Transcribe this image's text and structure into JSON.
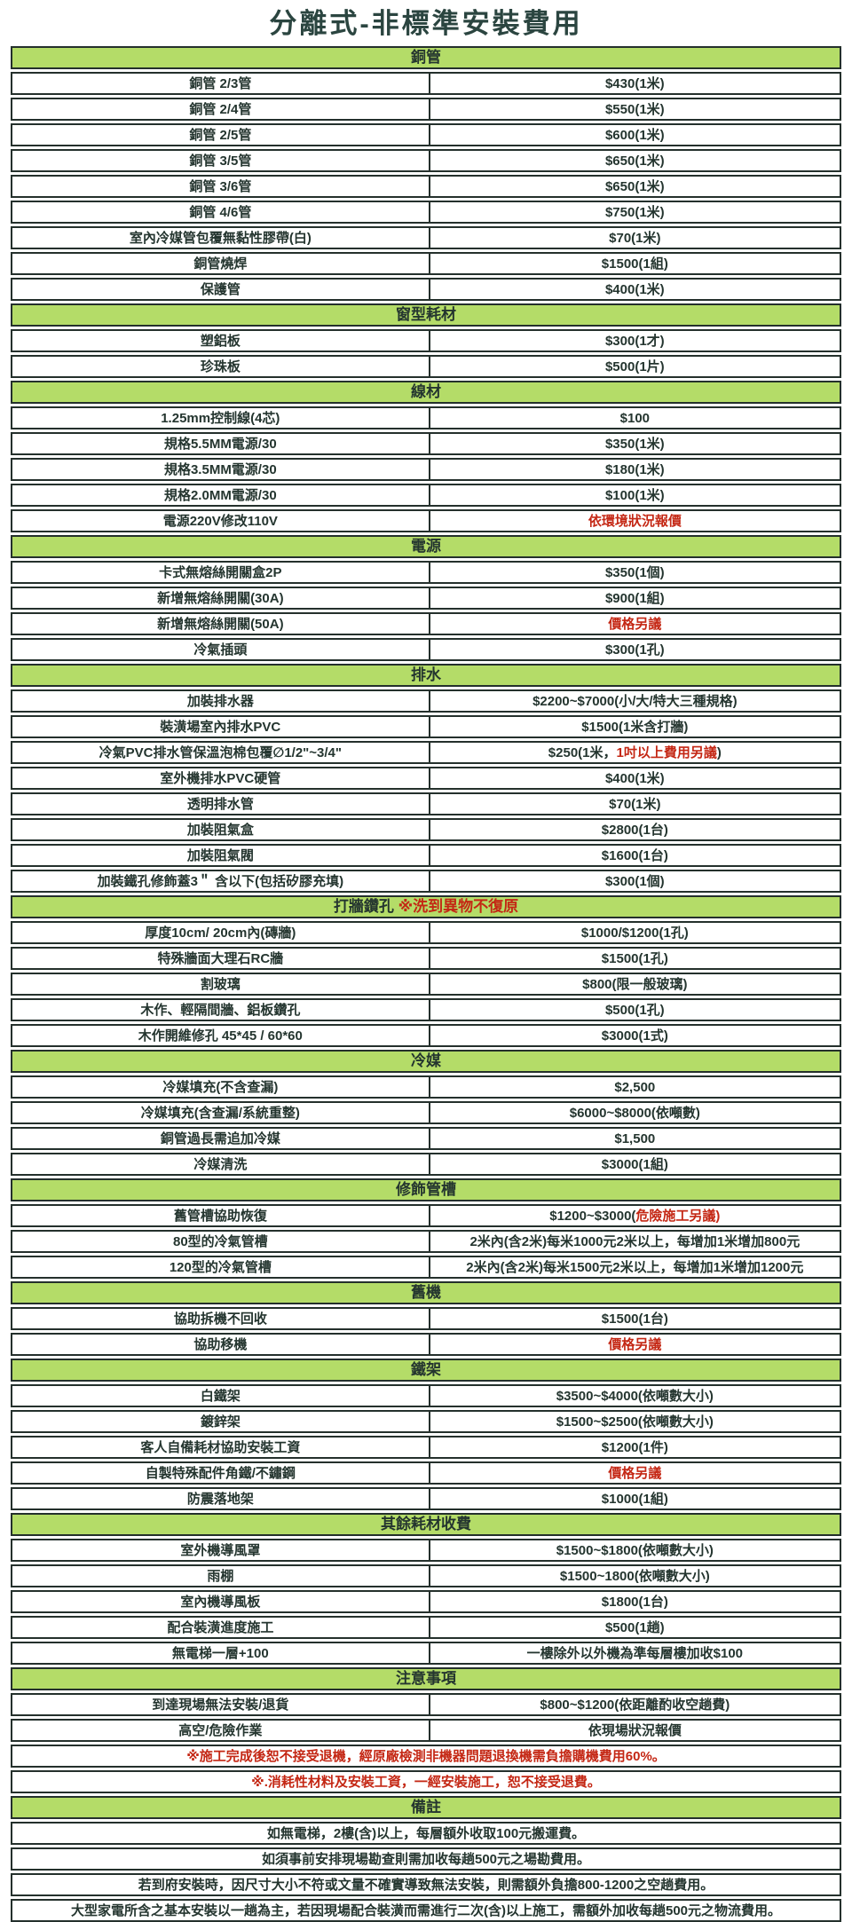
{
  "title": "分離式-非標準安裝費用",
  "colors": {
    "header_bg": "#b4dc68",
    "border": "#24302c",
    "text": "#24352f",
    "red": "#c42714"
  },
  "sections": [
    {
      "header": "銅管",
      "rows": [
        {
          "label": "銅管 2/3管",
          "value": "$430(1米)"
        },
        {
          "label": "銅管 2/4管",
          "value": "$550(1米)"
        },
        {
          "label": "銅管 2/5管",
          "value": "$600(1米)"
        },
        {
          "label": "銅管 3/5管",
          "value": "$650(1米)"
        },
        {
          "label": "銅管 3/6管",
          "value": "$650(1米)"
        },
        {
          "label": "銅管 4/6管",
          "value": "$750(1米)"
        },
        {
          "label": "室內冷媒管包覆無黏性膠帶(白)",
          "value": "$70(1米)"
        },
        {
          "label": "銅管燒焊",
          "value": "$1500(1組)"
        },
        {
          "label": "保護管",
          "value": "$400(1米)"
        }
      ]
    },
    {
      "header": "窗型耗材",
      "rows": [
        {
          "label": "塑鋁板",
          "value": "$300(1才)"
        },
        {
          "label": "珍珠板",
          "value": "$500(1片)"
        }
      ]
    },
    {
      "header": "線材",
      "rows": [
        {
          "label": "1.25mm控制線(4芯)",
          "value": "$100"
        },
        {
          "label": "規格5.5MM電源/30",
          "value": "$350(1米)"
        },
        {
          "label": "規格3.5MM電源/30",
          "value": "$180(1米)"
        },
        {
          "label": "規格2.0MM電源/30",
          "value": "$100(1米)"
        },
        {
          "label": "電源220V修改110V",
          "value": "依環境狀況報價",
          "value_red": true
        }
      ]
    },
    {
      "header": "電源",
      "rows": [
        {
          "label": "卡式無熔絲開關盒2P",
          "value": "$350(1個)"
        },
        {
          "label": "新增無熔絲開關(30A)",
          "value": "$900(1組)"
        },
        {
          "label": "新增無熔絲開關(50A)",
          "value": "價格另議",
          "value_red": true
        },
        {
          "label": "冷氣插頭",
          "value": "$300(1孔)"
        }
      ]
    },
    {
      "header": "排水",
      "rows": [
        {
          "label": "加裝排水器",
          "value": "$2200~$7000(小/大/特大三種規格)"
        },
        {
          "label": "裝潢場室內排水PVC",
          "value": "$1500(1米含打牆)"
        },
        {
          "label": "冷氣PVC排水管保溫泡棉包覆∅1/2\"~3/4\"",
          "value_parts": [
            {
              "t": "$250(1米，"
            },
            {
              "t": "1吋以上費用另議",
              "red": true
            },
            {
              "t": ")"
            }
          ]
        },
        {
          "label": "室外機排水PVC硬管",
          "value": "$400(1米)"
        },
        {
          "label": "透明排水管",
          "value": "$70(1米)"
        },
        {
          "label": "加裝阻氣盒",
          "value": "$2800(1台)"
        },
        {
          "label": "加裝阻氣閥",
          "value": "$1600(1台)"
        },
        {
          "label": "加裝鐵孔修飾蓋3＂ 含以下(包括矽膠充填)",
          "value": "$300(1個)"
        }
      ]
    },
    {
      "header_parts": [
        {
          "t": "打牆鑽孔 "
        },
        {
          "t": "※洗到異物不復原",
          "red": true
        }
      ],
      "rows": [
        {
          "label": "厚度10cm/ 20cm內(磚牆)",
          "value": "$1000/$1200(1孔)"
        },
        {
          "label": "特殊牆面大理石RC牆",
          "value": "$1500(1孔)"
        },
        {
          "label": "割玻璃",
          "value": "$800(限一般玻璃)"
        },
        {
          "label": "木作、輕隔間牆、鋁板鑽孔",
          "value": "$500(1孔)"
        },
        {
          "label": "木作開維修孔 45*45 / 60*60",
          "value": "$3000(1式)"
        }
      ]
    },
    {
      "header": "冷媒",
      "rows": [
        {
          "label": "冷媒填充(不含查漏)",
          "value": "$2,500"
        },
        {
          "label": "冷媒填充(含查漏/系統重整)",
          "value": "$6000~$8000(依噸數)"
        },
        {
          "label": "銅管過長需追加冷媒",
          "value": "$1,500"
        },
        {
          "label": "冷媒清洗",
          "value": "$3000(1組)"
        }
      ]
    },
    {
      "header": "修飾管槽",
      "rows": [
        {
          "label": "舊管槽協助恢復",
          "value_parts": [
            {
              "t": "$1200~$3000("
            },
            {
              "t": "危險施工另議)",
              "red": true
            }
          ]
        },
        {
          "label": "80型的冷氣管槽",
          "value": "2米內(含2米)每米1000元2米以上，每增加1米增加800元"
        },
        {
          "label": "120型的冷氣管槽",
          "value": "2米內(含2米)每米1500元2米以上，每增加1米增加1200元"
        }
      ]
    },
    {
      "header": "舊機",
      "rows": [
        {
          "label": "協助拆機不回收",
          "value": "$1500(1台)"
        },
        {
          "label": "協助移機",
          "value": "價格另議",
          "value_red": true
        }
      ]
    },
    {
      "header": "鐵架",
      "rows": [
        {
          "label": "白鐵架",
          "value": "$3500~$4000(依噸數大小)"
        },
        {
          "label": "鍍鋅架",
          "value": "$1500~$2500(依噸數大小)"
        },
        {
          "label": "客人自備耗材協助安裝工資",
          "value": "$1200(1件)"
        },
        {
          "label": "自製特殊配件角鐵/不鏽鋼",
          "value": "價格另議",
          "value_red": true
        },
        {
          "label": "防震落地架",
          "value": "$1000(1組)"
        }
      ]
    },
    {
      "header": "其餘耗材收費",
      "rows": [
        {
          "label": "室外機導風罩",
          "value": "$1500~$1800(依噸數大小)"
        },
        {
          "label": "雨棚",
          "value": "$1500~1800(依噸數大小)"
        },
        {
          "label": "室內機導風板",
          "value": "$1800(1台)"
        },
        {
          "label": "配合裝潢進度施工",
          "value": "$500(1趟)"
        },
        {
          "label": "無電梯一層+100",
          "value": "一樓除外以外機為準每層樓加收$100"
        }
      ]
    },
    {
      "header": "注意事項",
      "rows": [
        {
          "label": "到達現場無法安裝/退貨",
          "value": "$800~$1200(依距離酌收空趟費)"
        },
        {
          "label": "高空/危險作業",
          "value": "依現場狀況報價"
        },
        {
          "full": "※施工完成後恕不接受退機，經原廠檢測非機器問題退換機需負擔購機費用60%。",
          "red": true
        },
        {
          "full": "※.消耗性材料及安裝工資，一經安裝施工，恕不接受退費。",
          "red": true
        }
      ]
    },
    {
      "header": "備註",
      "rows": [
        {
          "full": "如無電梯，2樓(含)以上，每層額外收取100元搬運費。"
        },
        {
          "full": "如須事前安排現場勘查則需加收每趟500元之場勘費用。"
        },
        {
          "full": "若到府安裝時，因尺寸大小不符或文量不確實導致無法安裝，則需額外負擔800-1200之空趟費用。"
        },
        {
          "full": "大型家電所含之基本安裝以一趟為主，若因現場配合裝潢而需進行二次(含)以上施工，需額外加收每趟500元之物流費用。"
        }
      ]
    }
  ]
}
